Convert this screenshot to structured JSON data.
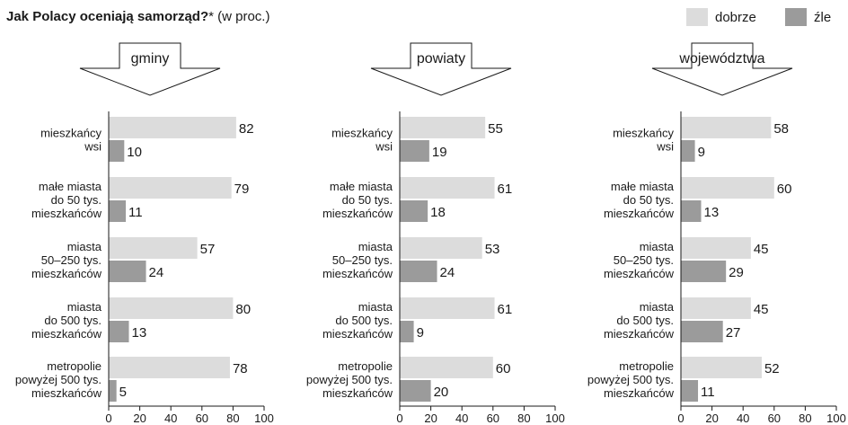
{
  "title_bold": "Jak Polacy oceniają samorząd?",
  "title_rest": "* (w proc.)",
  "colors": {
    "dobrze": "#dcdcdc",
    "zle": "#9b9b9b",
    "axis": "#1a1a1a"
  },
  "legend": [
    {
      "key": "dobrze",
      "label": "dobrze"
    },
    {
      "key": "zle",
      "label": "źle"
    }
  ],
  "chart_data": [
    {
      "type": "bar",
      "title": "gminy",
      "orientation": "horizontal",
      "categories": [
        [
          "mieszkańcy",
          "wsi"
        ],
        [
          "małe miasta",
          "do 50 tys.",
          "mieszkańców"
        ],
        [
          "miasta",
          "50–250 tys.",
          "mieszkańców"
        ],
        [
          "miasta",
          "do 500 tys.",
          "mieszkańców"
        ],
        [
          "metropolie",
          "powyżej 500 tys.",
          "mieszkańców"
        ]
      ],
      "series": [
        {
          "name": "dobrze",
          "values": [
            82,
            79,
            57,
            80,
            78
          ]
        },
        {
          "name": "źle",
          "values": [
            10,
            11,
            24,
            13,
            5
          ]
        }
      ],
      "xlim": [
        0,
        100
      ],
      "xticks": [
        0,
        20,
        40,
        60,
        80,
        100
      ],
      "grid": false,
      "legend_position": "top-right"
    },
    {
      "type": "bar",
      "title": "powiaty",
      "orientation": "horizontal",
      "categories": [
        [
          "mieszkańcy",
          "wsi"
        ],
        [
          "małe miasta",
          "do 50 tys.",
          "mieszkańców"
        ],
        [
          "miasta",
          "50–250 tys.",
          "mieszkańców"
        ],
        [
          "miasta",
          "do 500 tys.",
          "mieszkańców"
        ],
        [
          "metropolie",
          "powyżej 500 tys.",
          "mieszkańców"
        ]
      ],
      "series": [
        {
          "name": "dobrze",
          "values": [
            55,
            61,
            53,
            61,
            60
          ]
        },
        {
          "name": "źle",
          "values": [
            19,
            18,
            24,
            9,
            20
          ]
        }
      ],
      "xlim": [
        0,
        100
      ],
      "xticks": [
        0,
        20,
        40,
        60,
        80,
        100
      ],
      "grid": false,
      "legend_position": "top-right"
    },
    {
      "type": "bar",
      "title": "województwa",
      "orientation": "horizontal",
      "categories": [
        [
          "mieszkańcy",
          "wsi"
        ],
        [
          "małe miasta",
          "do 50 tys.",
          "mieszkańców"
        ],
        [
          "miasta",
          "50–250 tys.",
          "mieszkańców"
        ],
        [
          "miasta",
          "do 500 tys.",
          "mieszkańców"
        ],
        [
          "metropolie",
          "powyżej 500 tys.",
          "mieszkańców"
        ]
      ],
      "series": [
        {
          "name": "dobrze",
          "values": [
            58,
            60,
            45,
            45,
            52
          ]
        },
        {
          "name": "źle",
          "values": [
            9,
            13,
            29,
            27,
            11
          ]
        }
      ],
      "xlim": [
        0,
        100
      ],
      "xticks": [
        0,
        20,
        40,
        60,
        80,
        100
      ],
      "grid": false,
      "legend_position": "top-right"
    }
  ]
}
